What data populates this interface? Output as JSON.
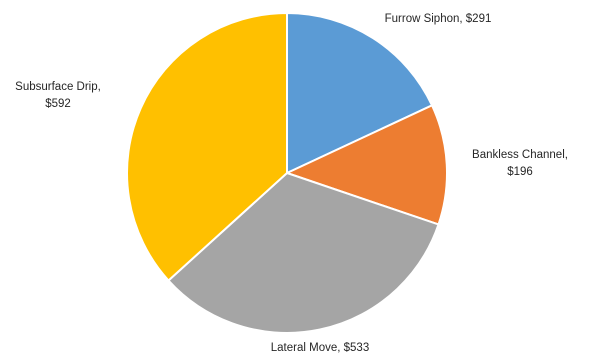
{
  "chart_data": {
    "type": "pie",
    "title": "",
    "labels": [
      "Furrow Siphon, $291",
      "Bankless Channel, $196",
      "Lateral Move, $533",
      "Subsurface Drip, $592"
    ],
    "slices": [
      {
        "category": "Furrow Siphon",
        "value": 291,
        "color": "#5b9bd5"
      },
      {
        "category": "Bankless Channel",
        "value": 196,
        "color": "#ed7d31"
      },
      {
        "category": "Lateral Move",
        "value": 533,
        "color": "#a5a5a5"
      },
      {
        "category": "Subsurface Drip",
        "value": 592,
        "color": "#ffc000"
      }
    ],
    "start_angle": "12 o'clock",
    "direction": "clockwise",
    "legend": "none"
  }
}
